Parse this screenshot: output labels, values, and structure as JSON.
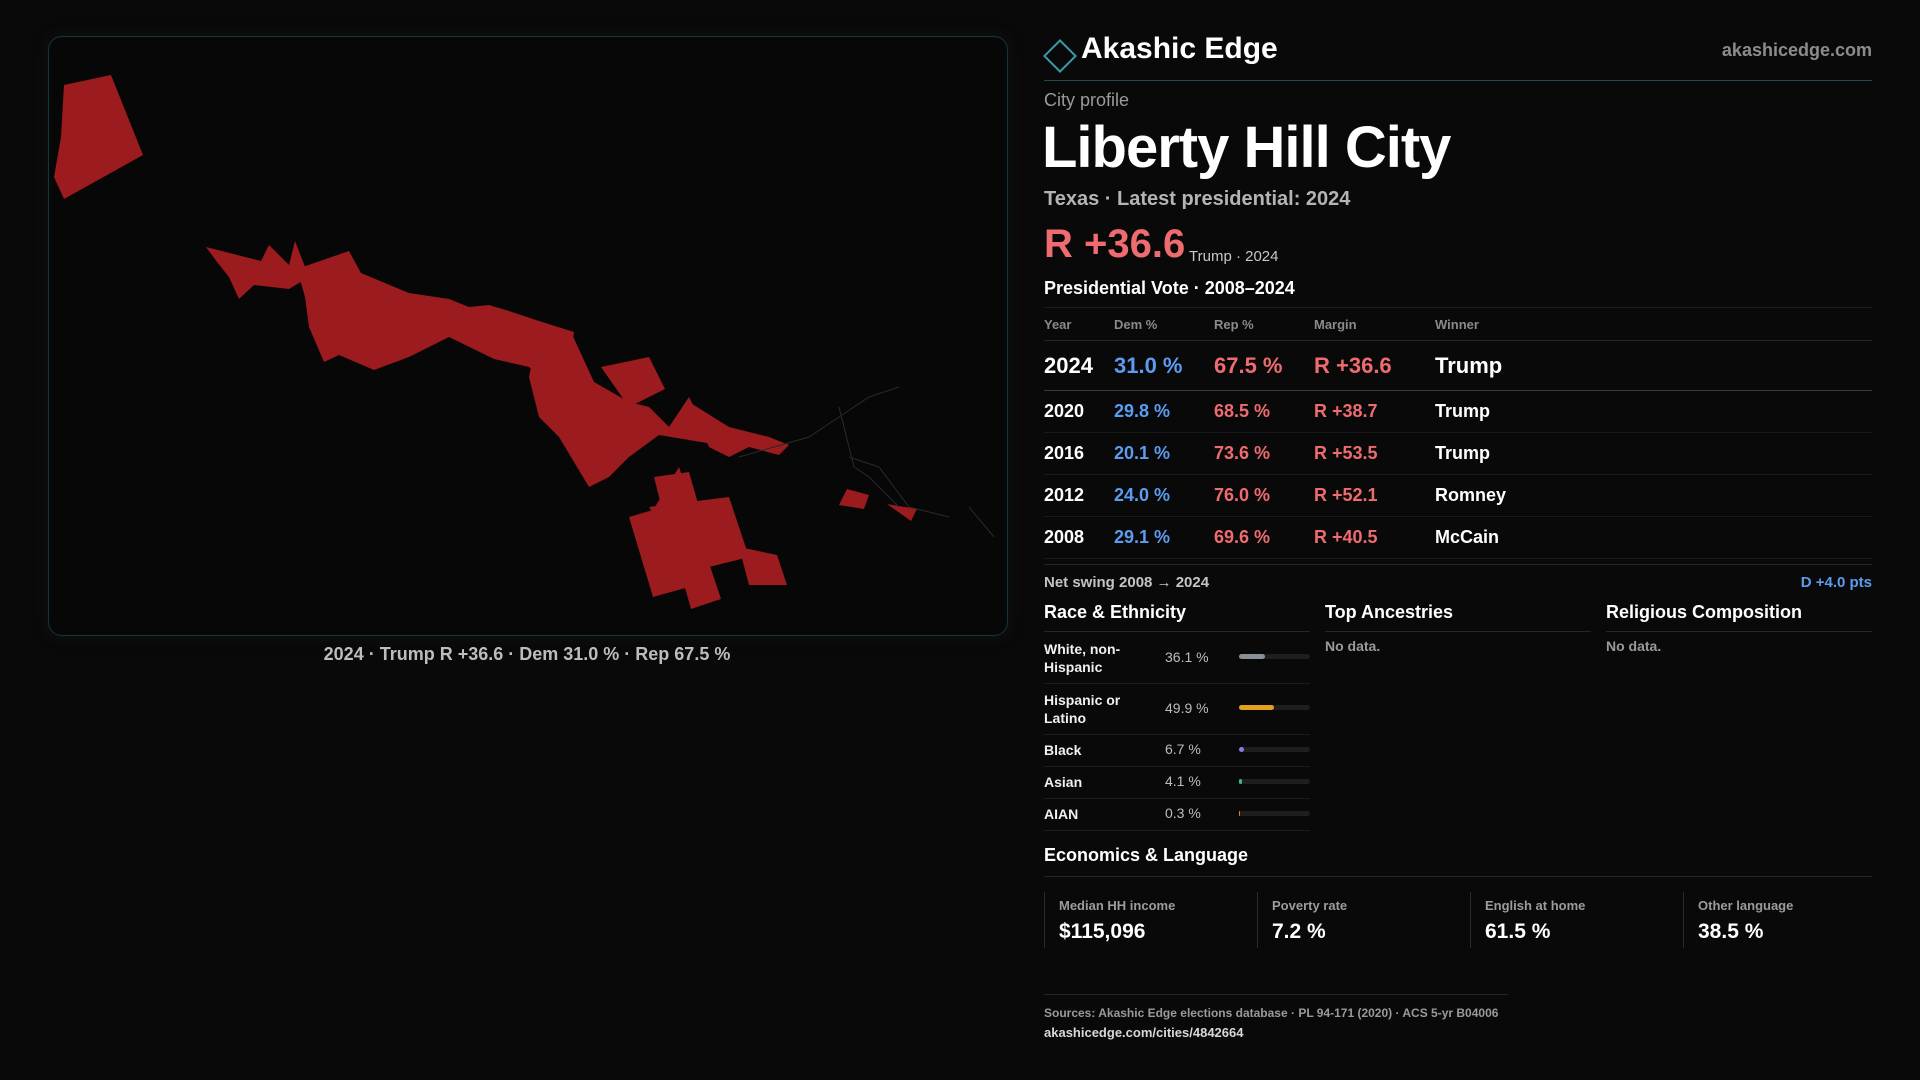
{
  "brand": {
    "name": "Akashic Edge",
    "url": "akashicedge.com"
  },
  "profile": {
    "kicker": "City profile",
    "city": "Liberty Hill City",
    "subtitle": "Texas · Latest presidential: 2024",
    "margin": "R +36.6",
    "margin_note": "Trump · 2024"
  },
  "map": {
    "caption": "2024 · Trump R +36.6 · Dem 31.0 % · Rep 67.5 %",
    "fill_color": "#9b1b1e"
  },
  "votes": {
    "heading": "Presidential Vote · 2008–2024",
    "columns": [
      "Year",
      "Dem %",
      "Rep %",
      "Margin",
      "Winner"
    ],
    "rows": [
      {
        "year": "2024",
        "dem": "31.0 %",
        "rep": "67.5 %",
        "margin": "R +36.6",
        "winner": "Trump"
      },
      {
        "year": "2020",
        "dem": "29.8 %",
        "rep": "68.5 %",
        "margin": "R +38.7",
        "winner": "Trump"
      },
      {
        "year": "2016",
        "dem": "20.1 %",
        "rep": "73.6 %",
        "margin": "R +53.5",
        "winner": "Trump"
      },
      {
        "year": "2012",
        "dem": "24.0 %",
        "rep": "76.0 %",
        "margin": "R +52.1",
        "winner": "Romney"
      },
      {
        "year": "2008",
        "dem": "29.1 %",
        "rep": "69.6 %",
        "margin": "R +40.5",
        "winner": "McCain"
      }
    ]
  },
  "swing": {
    "label": "Net swing 2008 → 2024",
    "value": "D +4.0 pts"
  },
  "race": {
    "heading": "Race & Ethnicity",
    "rows": [
      {
        "label": "White, non-Hispanic",
        "value": "36.1 %",
        "share": 0.361,
        "color": "#8a9098"
      },
      {
        "label": "Hispanic or Latino",
        "value": "49.9 %",
        "share": 0.499,
        "color": "#e0a020"
      },
      {
        "label": "Black",
        "value": "6.7 %",
        "share": 0.067,
        "color": "#8a7fe0"
      },
      {
        "label": "Asian",
        "value": "4.1 %",
        "share": 0.041,
        "color": "#3ab59a"
      },
      {
        "label": "AIAN",
        "value": "0.3 %",
        "share": 0.003,
        "color": "#e07a3a"
      }
    ]
  },
  "ancestries": {
    "heading": "Top Ancestries",
    "empty": "No data."
  },
  "religion": {
    "heading": "Religious Composition",
    "empty": "No data."
  },
  "economics": {
    "heading": "Economics & Language",
    "cards": [
      {
        "label": "Median HH income",
        "value": "$115,096"
      },
      {
        "label": "Poverty rate",
        "value": "7.2 %"
      },
      {
        "label": "English at home",
        "value": "61.5 %"
      },
      {
        "label": "Other language",
        "value": "38.5 %"
      }
    ]
  },
  "sources": {
    "text": "Sources: Akashic Edge elections database · PL 94-171 (2020) · ACS 5-yr B04006",
    "url": "akashicedge.com/cities/4842664"
  }
}
